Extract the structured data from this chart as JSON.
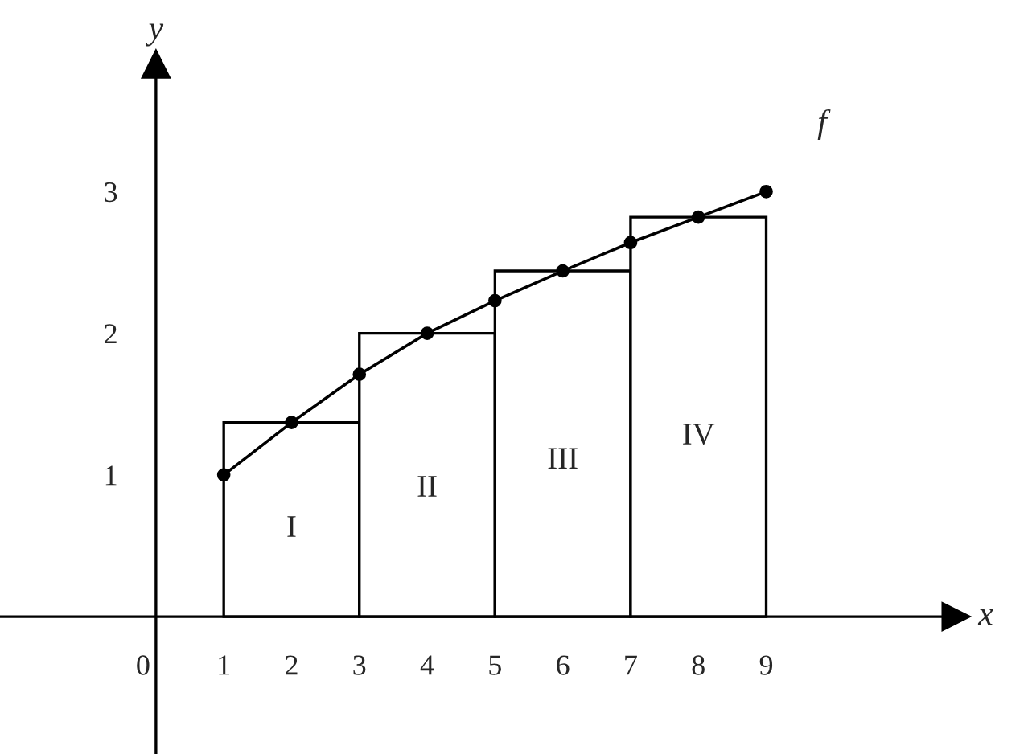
{
  "chart_data": {
    "type": "bar",
    "xlabel": "x",
    "ylabel": "y",
    "series": [
      {
        "color": "#ffffff",
        "x": [
          2,
          4,
          6,
          8
        ],
        "values": [
          1.37,
          2,
          2.44,
          2.82
        ]
      },
      {
        "type": "line",
        "color": "#000000",
        "marker": "circle",
        "x": [
          1,
          2,
          3,
          4,
          5,
          6,
          7,
          8,
          9
        ],
        "values": [
          1,
          1.37,
          1.71,
          2,
          2.23,
          2.44,
          2.64,
          2.82,
          3
        ]
      }
    ],
    "xlim": [
      -2.3,
      11.8
    ],
    "ylim": [
      -0.97,
      3.9
    ],
    "xticks": [
      0,
      1,
      2,
      3,
      4,
      5,
      6,
      7,
      8,
      9
    ],
    "yticks": [
      1,
      2,
      3
    ],
    "annotations": [
      "I",
      "II",
      "III",
      "IV",
      "f"
    ],
    "grid": false,
    "legend": false
  }
}
